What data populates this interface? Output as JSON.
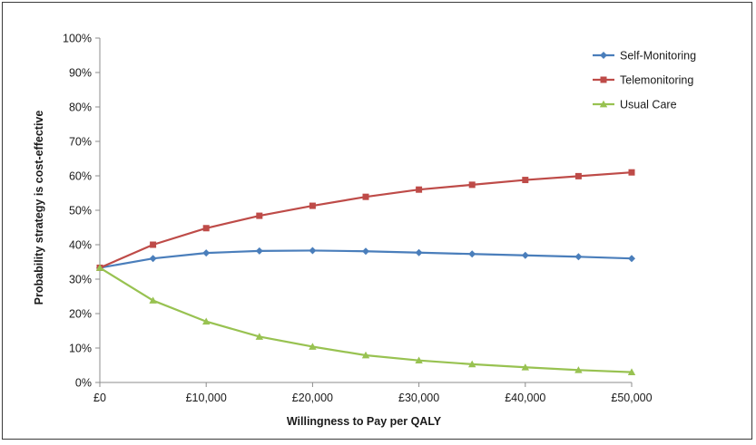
{
  "chart_data": {
    "type": "line",
    "xlabel": "Willingness to Pay per QALY",
    "ylabel": "Probability strategy is cost-effective",
    "x": [
      0,
      5000,
      10000,
      15000,
      20000,
      25000,
      30000,
      35000,
      40000,
      45000,
      50000
    ],
    "x_tick_values": [
      0,
      10000,
      20000,
      30000,
      40000,
      50000
    ],
    "x_tick_labels": [
      "£0",
      "£10,000",
      "£20,000",
      "£30,000",
      "£40,000",
      "£50,000"
    ],
    "xlim": [
      0,
      50000
    ],
    "ylim": [
      0,
      100
    ],
    "y_tick_values": [
      0,
      10,
      20,
      30,
      40,
      50,
      60,
      70,
      80,
      90,
      100
    ],
    "y_tick_labels": [
      "0%",
      "10%",
      "20%",
      "30%",
      "40%",
      "50%",
      "60%",
      "70%",
      "80%",
      "90%",
      "100%"
    ],
    "grid": false,
    "legend_position": "top-right",
    "series": [
      {
        "name": "Self-Monitoring",
        "color": "#4a7ebb",
        "marker": "diamond",
        "values": [
          33.3,
          36,
          37.6,
          38.2,
          38.3,
          38.1,
          37.7,
          37.3,
          36.9,
          36.5,
          36
        ]
      },
      {
        "name": "Telemonitoring",
        "color": "#be4b48",
        "marker": "square",
        "values": [
          33.3,
          40,
          44.8,
          48.4,
          51.3,
          53.9,
          56,
          57.4,
          58.8,
          59.9,
          61
        ]
      },
      {
        "name": "Usual Care",
        "color": "#98c251",
        "marker": "triangle",
        "values": [
          33.3,
          23.8,
          17.7,
          13.3,
          10.4,
          7.9,
          6.4,
          5.3,
          4.4,
          3.6,
          3
        ]
      }
    ]
  }
}
